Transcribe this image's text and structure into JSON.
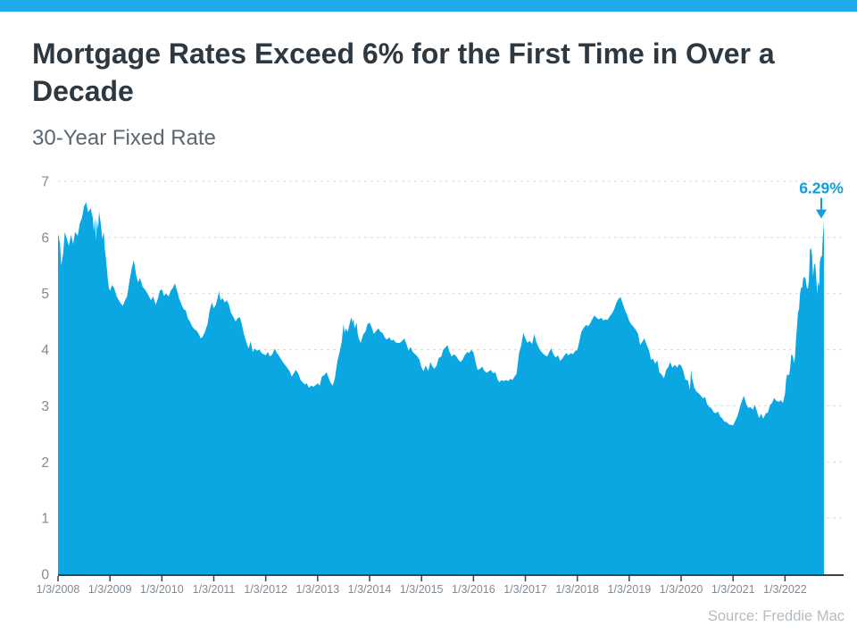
{
  "page": {
    "title": "Mortgage Rates Exceed 6% for the First Time in Over a Decade",
    "subtitle": "30-Year Fixed Rate",
    "source": "Source: Freddie Mac"
  },
  "colors": {
    "accent_bar": "#1caae9",
    "area": "#0aa7e3",
    "annotation": "#0d9fdb",
    "title_text": "#2e3840",
    "subtitle_text": "#5a6670",
    "axis_text": "#7e8a94",
    "source_text": "#b3bcc4",
    "gridline": "#d7dadd",
    "axis_line": "#3a4047"
  },
  "chart_data": {
    "type": "area",
    "title": "30-Year Fixed Rate",
    "series_name": "30-Year Fixed Rate (%)",
    "unit": "percent",
    "ylim": [
      0,
      7
    ],
    "y_ticks": [
      0,
      1,
      2,
      3,
      4,
      5,
      6,
      7
    ],
    "x_tick_labels": [
      "1/3/2008",
      "1/3/2009",
      "1/3/2010",
      "1/3/2011",
      "1/3/2012",
      "1/3/2013",
      "1/3/2014",
      "1/3/2015",
      "1/3/2016",
      "1/3/2017",
      "1/3/2018",
      "1/3/2019",
      "1/3/2020",
      "1/3/2021",
      "1/3/2022"
    ],
    "x_unit_note": "t = years since 1/3/2008, range 0 to 14.75 (late Sept 2022)",
    "grid": "horizontal dashed gridlines at each integer, solid dark baseline at 0",
    "legend": "none",
    "annotation": {
      "label": "6.29%",
      "t": 14.75,
      "value": 6.29
    },
    "points": [
      [
        0.0,
        6.07
      ],
      [
        0.04,
        5.88
      ],
      [
        0.06,
        5.5
      ],
      [
        0.1,
        5.72
      ],
      [
        0.13,
        6.1
      ],
      [
        0.17,
        5.97
      ],
      [
        0.21,
        5.85
      ],
      [
        0.25,
        6.05
      ],
      [
        0.29,
        5.88
      ],
      [
        0.33,
        6.1
      ],
      [
        0.38,
        6.03
      ],
      [
        0.42,
        6.25
      ],
      [
        0.46,
        6.35
      ],
      [
        0.5,
        6.55
      ],
      [
        0.54,
        6.63
      ],
      [
        0.58,
        6.45
      ],
      [
        0.63,
        6.52
      ],
      [
        0.67,
        6.35
      ],
      [
        0.69,
        6.1
      ],
      [
        0.71,
        6.35
      ],
      [
        0.73,
        5.95
      ],
      [
        0.75,
        6.3
      ],
      [
        0.77,
        6.15
      ],
      [
        0.79,
        6.46
      ],
      [
        0.83,
        6.2
      ],
      [
        0.85,
        5.97
      ],
      [
        0.88,
        6.1
      ],
      [
        0.9,
        5.8
      ],
      [
        0.92,
        5.65
      ],
      [
        0.94,
        5.45
      ],
      [
        0.96,
        5.25
      ],
      [
        0.98,
        5.1
      ],
      [
        1.0,
        5.05
      ],
      [
        1.04,
        5.15
      ],
      [
        1.08,
        5.1
      ],
      [
        1.13,
        4.95
      ],
      [
        1.17,
        4.88
      ],
      [
        1.21,
        4.82
      ],
      [
        1.25,
        4.78
      ],
      [
        1.29,
        4.88
      ],
      [
        1.33,
        4.95
      ],
      [
        1.38,
        5.25
      ],
      [
        1.42,
        5.45
      ],
      [
        1.46,
        5.6
      ],
      [
        1.5,
        5.35
      ],
      [
        1.54,
        5.2
      ],
      [
        1.58,
        5.28
      ],
      [
        1.63,
        5.12
      ],
      [
        1.67,
        5.08
      ],
      [
        1.71,
        5.02
      ],
      [
        1.75,
        4.95
      ],
      [
        1.79,
        4.88
      ],
      [
        1.83,
        4.95
      ],
      [
        1.88,
        4.8
      ],
      [
        1.92,
        4.9
      ],
      [
        1.96,
        5.05
      ],
      [
        2.0,
        5.08
      ],
      [
        2.04,
        4.96
      ],
      [
        2.08,
        5.0
      ],
      [
        2.13,
        4.95
      ],
      [
        2.17,
        5.05
      ],
      [
        2.21,
        5.1
      ],
      [
        2.25,
        5.18
      ],
      [
        2.29,
        5.06
      ],
      [
        2.33,
        4.92
      ],
      [
        2.38,
        4.8
      ],
      [
        2.42,
        4.72
      ],
      [
        2.46,
        4.7
      ],
      [
        2.5,
        4.56
      ],
      [
        2.54,
        4.5
      ],
      [
        2.58,
        4.42
      ],
      [
        2.63,
        4.36
      ],
      [
        2.67,
        4.34
      ],
      [
        2.71,
        4.28
      ],
      [
        2.75,
        4.2
      ],
      [
        2.79,
        4.24
      ],
      [
        2.83,
        4.32
      ],
      [
        2.88,
        4.46
      ],
      [
        2.92,
        4.7
      ],
      [
        2.96,
        4.84
      ],
      [
        3.0,
        4.74
      ],
      [
        3.04,
        4.8
      ],
      [
        3.08,
        4.95
      ],
      [
        3.1,
        5.05
      ],
      [
        3.13,
        4.88
      ],
      [
        3.17,
        4.92
      ],
      [
        3.21,
        4.84
      ],
      [
        3.25,
        4.88
      ],
      [
        3.29,
        4.8
      ],
      [
        3.33,
        4.66
      ],
      [
        3.38,
        4.58
      ],
      [
        3.42,
        4.5
      ],
      [
        3.46,
        4.56
      ],
      [
        3.5,
        4.58
      ],
      [
        3.52,
        4.52
      ],
      [
        3.54,
        4.45
      ],
      [
        3.58,
        4.28
      ],
      [
        3.63,
        4.12
      ],
      [
        3.67,
        4.02
      ],
      [
        3.71,
        4.15
      ],
      [
        3.75,
        3.96
      ],
      [
        3.79,
        4.02
      ],
      [
        3.83,
        3.98
      ],
      [
        3.88,
        4.0
      ],
      [
        3.92,
        3.94
      ],
      [
        3.96,
        3.92
      ],
      [
        4.0,
        3.9
      ],
      [
        4.04,
        3.96
      ],
      [
        4.08,
        3.88
      ],
      [
        4.13,
        3.92
      ],
      [
        4.17,
        4.02
      ],
      [
        4.21,
        3.95
      ],
      [
        4.25,
        3.9
      ],
      [
        4.29,
        3.84
      ],
      [
        4.33,
        3.78
      ],
      [
        4.38,
        3.72
      ],
      [
        4.42,
        3.67
      ],
      [
        4.46,
        3.62
      ],
      [
        4.5,
        3.52
      ],
      [
        4.54,
        3.58
      ],
      [
        4.58,
        3.64
      ],
      [
        4.63,
        3.57
      ],
      [
        4.67,
        3.46
      ],
      [
        4.71,
        3.42
      ],
      [
        4.75,
        3.38
      ],
      [
        4.79,
        3.4
      ],
      [
        4.83,
        3.32
      ],
      [
        4.88,
        3.36
      ],
      [
        4.92,
        3.34
      ],
      [
        4.96,
        3.37
      ],
      [
        5.0,
        3.4
      ],
      [
        5.04,
        3.36
      ],
      [
        5.08,
        3.52
      ],
      [
        5.13,
        3.55
      ],
      [
        5.17,
        3.6
      ],
      [
        5.21,
        3.5
      ],
      [
        5.25,
        3.41
      ],
      [
        5.29,
        3.36
      ],
      [
        5.33,
        3.48
      ],
      [
        5.38,
        3.8
      ],
      [
        5.42,
        3.95
      ],
      [
        5.46,
        4.12
      ],
      [
        5.5,
        4.46
      ],
      [
        5.52,
        4.3
      ],
      [
        5.54,
        4.38
      ],
      [
        5.58,
        4.32
      ],
      [
        5.63,
        4.52
      ],
      [
        5.65,
        4.58
      ],
      [
        5.67,
        4.48
      ],
      [
        5.69,
        4.55
      ],
      [
        5.71,
        4.38
      ],
      [
        5.75,
        4.48
      ],
      [
        5.77,
        4.3
      ],
      [
        5.79,
        4.2
      ],
      [
        5.83,
        4.12
      ],
      [
        5.88,
        4.28
      ],
      [
        5.92,
        4.32
      ],
      [
        5.96,
        4.46
      ],
      [
        6.0,
        4.48
      ],
      [
        6.04,
        4.4
      ],
      [
        6.08,
        4.28
      ],
      [
        6.13,
        4.34
      ],
      [
        6.17,
        4.38
      ],
      [
        6.21,
        4.32
      ],
      [
        6.25,
        4.3
      ],
      [
        6.29,
        4.22
      ],
      [
        6.33,
        4.18
      ],
      [
        6.38,
        4.22
      ],
      [
        6.42,
        4.16
      ],
      [
        6.46,
        4.18
      ],
      [
        6.5,
        4.13
      ],
      [
        6.54,
        4.12
      ],
      [
        6.58,
        4.12
      ],
      [
        6.63,
        4.16
      ],
      [
        6.67,
        4.2
      ],
      [
        6.71,
        4.1
      ],
      [
        6.75,
        3.98
      ],
      [
        6.79,
        4.05
      ],
      [
        6.83,
        3.96
      ],
      [
        6.88,
        3.92
      ],
      [
        6.92,
        3.88
      ],
      [
        6.96,
        3.82
      ],
      [
        7.0,
        3.68
      ],
      [
        7.04,
        3.62
      ],
      [
        7.08,
        3.72
      ],
      [
        7.13,
        3.62
      ],
      [
        7.17,
        3.78
      ],
      [
        7.21,
        3.7
      ],
      [
        7.25,
        3.66
      ],
      [
        7.29,
        3.72
      ],
      [
        7.33,
        3.85
      ],
      [
        7.38,
        3.88
      ],
      [
        7.42,
        4.0
      ],
      [
        7.46,
        4.04
      ],
      [
        7.5,
        4.08
      ],
      [
        7.54,
        3.96
      ],
      [
        7.58,
        3.88
      ],
      [
        7.63,
        3.92
      ],
      [
        7.67,
        3.88
      ],
      [
        7.71,
        3.82
      ],
      [
        7.75,
        3.78
      ],
      [
        7.79,
        3.82
      ],
      [
        7.83,
        3.9
      ],
      [
        7.88,
        3.96
      ],
      [
        7.92,
        3.94
      ],
      [
        7.96,
        4.0
      ],
      [
        8.0,
        3.95
      ],
      [
        8.04,
        3.78
      ],
      [
        8.08,
        3.64
      ],
      [
        8.13,
        3.66
      ],
      [
        8.17,
        3.7
      ],
      [
        8.21,
        3.62
      ],
      [
        8.25,
        3.59
      ],
      [
        8.29,
        3.61
      ],
      [
        8.33,
        3.64
      ],
      [
        8.38,
        3.58
      ],
      [
        8.42,
        3.6
      ],
      [
        8.46,
        3.48
      ],
      [
        8.5,
        3.42
      ],
      [
        8.54,
        3.46
      ],
      [
        8.58,
        3.44
      ],
      [
        8.63,
        3.46
      ],
      [
        8.67,
        3.44
      ],
      [
        8.71,
        3.48
      ],
      [
        8.75,
        3.46
      ],
      [
        8.79,
        3.52
      ],
      [
        8.83,
        3.57
      ],
      [
        8.88,
        3.94
      ],
      [
        8.92,
        4.08
      ],
      [
        8.96,
        4.3
      ],
      [
        9.0,
        4.2
      ],
      [
        9.04,
        4.12
      ],
      [
        9.08,
        4.16
      ],
      [
        9.13,
        4.1
      ],
      [
        9.17,
        4.28
      ],
      [
        9.21,
        4.14
      ],
      [
        9.25,
        4.05
      ],
      [
        9.29,
        3.98
      ],
      [
        9.33,
        3.94
      ],
      [
        9.38,
        3.9
      ],
      [
        9.42,
        3.88
      ],
      [
        9.46,
        3.96
      ],
      [
        9.5,
        4.02
      ],
      [
        9.54,
        3.92
      ],
      [
        9.58,
        3.86
      ],
      [
        9.63,
        3.9
      ],
      [
        9.67,
        3.8
      ],
      [
        9.71,
        3.84
      ],
      [
        9.75,
        3.9
      ],
      [
        9.79,
        3.94
      ],
      [
        9.83,
        3.9
      ],
      [
        9.88,
        3.94
      ],
      [
        9.92,
        3.92
      ],
      [
        9.96,
        3.98
      ],
      [
        10.0,
        3.99
      ],
      [
        10.04,
        4.15
      ],
      [
        10.08,
        4.32
      ],
      [
        10.13,
        4.4
      ],
      [
        10.17,
        4.44
      ],
      [
        10.21,
        4.42
      ],
      [
        10.25,
        4.47
      ],
      [
        10.29,
        4.55
      ],
      [
        10.33,
        4.61
      ],
      [
        10.38,
        4.56
      ],
      [
        10.42,
        4.54
      ],
      [
        10.46,
        4.57
      ],
      [
        10.5,
        4.52
      ],
      [
        10.54,
        4.54
      ],
      [
        10.58,
        4.53
      ],
      [
        10.63,
        4.6
      ],
      [
        10.67,
        4.65
      ],
      [
        10.71,
        4.72
      ],
      [
        10.75,
        4.83
      ],
      [
        10.79,
        4.9
      ],
      [
        10.83,
        4.94
      ],
      [
        10.88,
        4.81
      ],
      [
        10.92,
        4.7
      ],
      [
        10.96,
        4.62
      ],
      [
        11.0,
        4.51
      ],
      [
        11.04,
        4.45
      ],
      [
        11.08,
        4.41
      ],
      [
        11.13,
        4.35
      ],
      [
        11.17,
        4.28
      ],
      [
        11.21,
        4.08
      ],
      [
        11.25,
        4.14
      ],
      [
        11.29,
        4.2
      ],
      [
        11.33,
        4.1
      ],
      [
        11.38,
        3.99
      ],
      [
        11.42,
        3.82
      ],
      [
        11.46,
        3.84
      ],
      [
        11.5,
        3.75
      ],
      [
        11.54,
        3.81
      ],
      [
        11.58,
        3.6
      ],
      [
        11.63,
        3.55
      ],
      [
        11.67,
        3.49
      ],
      [
        11.71,
        3.64
      ],
      [
        11.75,
        3.69
      ],
      [
        11.79,
        3.78
      ],
      [
        11.83,
        3.68
      ],
      [
        11.88,
        3.73
      ],
      [
        11.92,
        3.68
      ],
      [
        11.96,
        3.74
      ],
      [
        12.0,
        3.72
      ],
      [
        12.04,
        3.62
      ],
      [
        12.08,
        3.47
      ],
      [
        12.13,
        3.45
      ],
      [
        12.17,
        3.29
      ],
      [
        12.19,
        3.65
      ],
      [
        12.21,
        3.5
      ],
      [
        12.25,
        3.33
      ],
      [
        12.29,
        3.26
      ],
      [
        12.33,
        3.23
      ],
      [
        12.38,
        3.18
      ],
      [
        12.42,
        3.13
      ],
      [
        12.46,
        3.16
      ],
      [
        12.5,
        3.03
      ],
      [
        12.54,
        2.98
      ],
      [
        12.58,
        2.96
      ],
      [
        12.63,
        2.88
      ],
      [
        12.67,
        2.87
      ],
      [
        12.71,
        2.9
      ],
      [
        12.75,
        2.81
      ],
      [
        12.79,
        2.78
      ],
      [
        12.83,
        2.72
      ],
      [
        12.88,
        2.71
      ],
      [
        12.92,
        2.67
      ],
      [
        12.96,
        2.66
      ],
      [
        13.0,
        2.65
      ],
      [
        13.04,
        2.73
      ],
      [
        13.08,
        2.81
      ],
      [
        13.13,
        2.97
      ],
      [
        13.17,
        3.09
      ],
      [
        13.21,
        3.18
      ],
      [
        13.25,
        3.04
      ],
      [
        13.29,
        2.96
      ],
      [
        13.33,
        2.98
      ],
      [
        13.38,
        2.93
      ],
      [
        13.42,
        3.02
      ],
      [
        13.46,
        2.9
      ],
      [
        13.5,
        2.78
      ],
      [
        13.54,
        2.86
      ],
      [
        13.58,
        2.77
      ],
      [
        13.63,
        2.87
      ],
      [
        13.67,
        2.88
      ],
      [
        13.71,
        3.01
      ],
      [
        13.75,
        3.05
      ],
      [
        13.79,
        3.14
      ],
      [
        13.83,
        3.09
      ],
      [
        13.88,
        3.07
      ],
      [
        13.92,
        3.1
      ],
      [
        13.96,
        3.05
      ],
      [
        14.0,
        3.22
      ],
      [
        14.02,
        3.45
      ],
      [
        14.04,
        3.56
      ],
      [
        14.06,
        3.55
      ],
      [
        14.08,
        3.55
      ],
      [
        14.1,
        3.69
      ],
      [
        14.12,
        3.92
      ],
      [
        14.15,
        3.89
      ],
      [
        14.17,
        3.76
      ],
      [
        14.19,
        3.85
      ],
      [
        14.21,
        4.16
      ],
      [
        14.23,
        4.42
      ],
      [
        14.25,
        4.67
      ],
      [
        14.27,
        4.72
      ],
      [
        14.29,
        5.0
      ],
      [
        14.31,
        5.11
      ],
      [
        14.33,
        5.1
      ],
      [
        14.35,
        5.27
      ],
      [
        14.38,
        5.3
      ],
      [
        14.4,
        5.25
      ],
      [
        14.42,
        5.1
      ],
      [
        14.44,
        5.09
      ],
      [
        14.46,
        5.23
      ],
      [
        14.48,
        5.78
      ],
      [
        14.5,
        5.81
      ],
      [
        14.52,
        5.7
      ],
      [
        14.54,
        5.3
      ],
      [
        14.56,
        5.51
      ],
      [
        14.58,
        5.54
      ],
      [
        14.6,
        5.3
      ],
      [
        14.62,
        4.99
      ],
      [
        14.64,
        5.22
      ],
      [
        14.66,
        5.13
      ],
      [
        14.67,
        5.55
      ],
      [
        14.69,
        5.66
      ],
      [
        14.71,
        5.66
      ],
      [
        14.72,
        5.89
      ],
      [
        14.73,
        6.02
      ],
      [
        14.74,
        6.12
      ],
      [
        14.75,
        6.29
      ]
    ]
  }
}
